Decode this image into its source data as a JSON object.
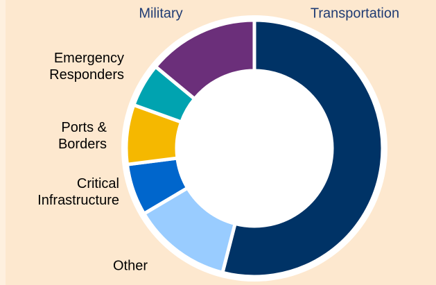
{
  "chart_data": {
    "type": "donut",
    "categories": [
      "Transportation",
      "Other",
      "Critical Infrastructure",
      "Ports & Borders",
      "Emergency Responders",
      "Military"
    ],
    "values": [
      54,
      12.5,
      6.5,
      7.5,
      5.5,
      14
    ],
    "colors": [
      "#003366",
      "#99ccff",
      "#0066cc",
      "#f5b800",
      "#00a3b0",
      "#6b2f7a"
    ]
  }
}
